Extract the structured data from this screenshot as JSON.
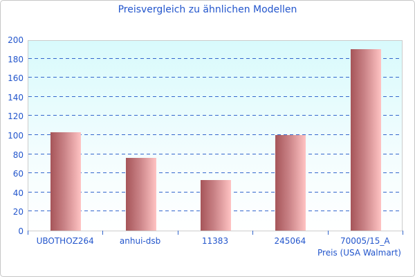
{
  "chart_data": {
    "type": "bar",
    "title": "Preisvergleich zu ähnlichen Modellen",
    "categories": [
      "UBOTHOZ264",
      "anhui-dsb",
      "11383",
      "245064",
      "70005/15_A"
    ],
    "values": [
      103,
      76,
      53,
      100,
      190
    ],
    "xlabel": "Preis (USA Walmart)",
    "ylabel": "",
    "ylim": [
      0,
      200
    ],
    "ytick_step": 20,
    "ytick_labels": [
      "0",
      "20",
      "40",
      "60",
      "80",
      "100",
      "120",
      "140",
      "160",
      "180",
      "200"
    ],
    "grid": "dashed horizontal",
    "legend_position": "none",
    "colors": {
      "title_text": "#2255cc",
      "axis_text": "#2255cc",
      "gridline": "#3366cc",
      "bar_gradient_left": "#a65559",
      "bar_gradient_right": "#ffc3c3",
      "plot_bg_top": "#d8fafc",
      "plot_bg_bottom": "#ffffff",
      "plot_border": "#cccccc",
      "frame_border": "#c6c6c6"
    }
  }
}
